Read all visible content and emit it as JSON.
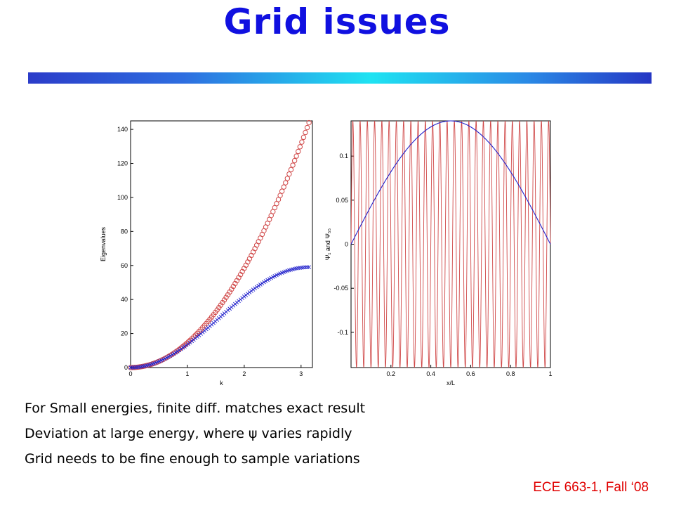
{
  "slide": {
    "title": "Grid issues",
    "bullets": [
      "For Small energies, finite diff. matches exact result",
      "Deviation at large energy, where ψ varies rapidly",
      "Grid needs to be fine enough to sample variations"
    ],
    "footer": "ECE 663-1, Fall ‘08"
  },
  "colors": {
    "title": "#1010e0",
    "exact_series": "#d04848",
    "fd_series": "#2222cc",
    "footer": "#e00000"
  },
  "chart_data": [
    {
      "type": "scatter",
      "xlabel": "k",
      "ylabel": "Eigenvalues",
      "xlim": [
        0,
        3.2
      ],
      "ylim": [
        0,
        145
      ],
      "xticks": [
        "0",
        "1",
        "2",
        "3"
      ],
      "yticks": [
        "0",
        "20",
        "40",
        "60",
        "80",
        "100",
        "120",
        "140"
      ],
      "grid": false,
      "series": [
        {
          "marker": "circle",
          "color": "#d04848",
          "formula": "14.6 * k^2",
          "k_range": [
            0,
            3.14
          ],
          "points": 100
        },
        {
          "marker": "x",
          "color": "#2222cc",
          "formula": "59 * sin^2(k/2)",
          "k_range": [
            0,
            3.14
          ],
          "points": 100
        }
      ]
    },
    {
      "type": "line",
      "xlabel": "x/L",
      "ylabel": "Ψ₁ and Ψ₅₅",
      "xlim": [
        0,
        1
      ],
      "ylim": [
        -0.14,
        0.14
      ],
      "xticks": [
        "0.2",
        "0.4",
        "0.6",
        "0.8",
        "1"
      ],
      "yticks": [
        "-0.1",
        "-0.05",
        "0",
        "0.05",
        "0.1"
      ],
      "grid": false,
      "series": [
        {
          "color": "#2222cc",
          "formula": "0.14 * sin(pi * x)",
          "points": 200
        },
        {
          "color": "#d04848",
          "formula": "0.14 * sin(55 * pi * x)",
          "points": 1200
        }
      ]
    }
  ]
}
